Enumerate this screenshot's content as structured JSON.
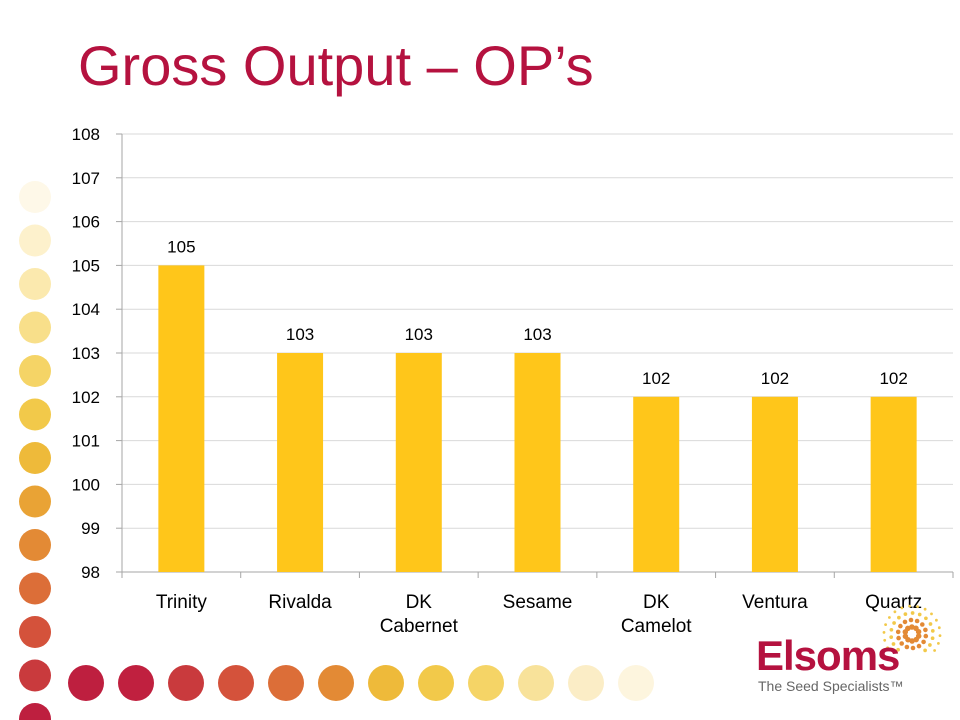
{
  "slide": {
    "title": "Gross Output – OP’s"
  },
  "logo": {
    "name": "Elsoms",
    "tagline": "The Seed Specialists™"
  },
  "colors": {
    "bar": "#FFC61A",
    "title": "#B5123F",
    "grid": "#D9D9D9",
    "axis": "#A6A6A6"
  },
  "chart_data": {
    "type": "bar",
    "categories": [
      "Trinity",
      "Rivalda",
      "DK Cabernet",
      "Sesame",
      "DK Camelot",
      "Ventura",
      "Quartz"
    ],
    "values": [
      105,
      103,
      103,
      103,
      102,
      102,
      102
    ],
    "data_labels": [
      "105",
      "103",
      "103",
      "103",
      "102",
      "102",
      "102"
    ],
    "ylim": [
      98,
      108
    ],
    "yticks": [
      98,
      99,
      100,
      101,
      102,
      103,
      104,
      105,
      106,
      107,
      108
    ],
    "grid": true,
    "legend": "none",
    "title": "",
    "xlabel": "",
    "ylabel": ""
  }
}
